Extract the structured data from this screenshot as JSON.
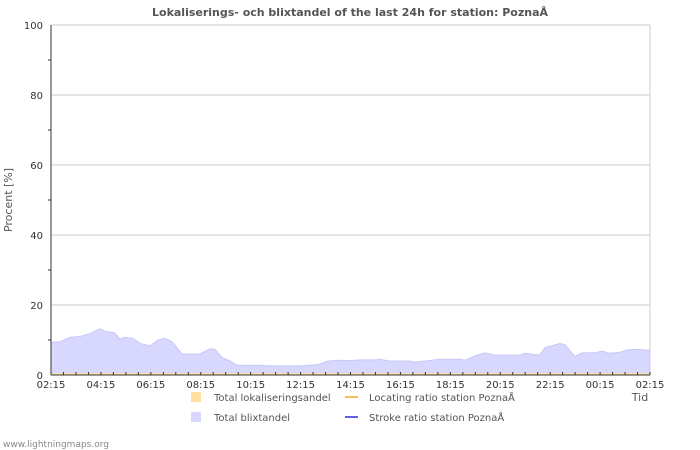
{
  "chart_data": {
    "type": "area",
    "title": "Lokaliserings- och blixtandel of the last 24h for station: PoznaÅ",
    "xlabel": "Tid",
    "ylabel": "Procent   [%]",
    "ylim": [
      0,
      100
    ],
    "yticks": [
      "0",
      "20",
      "40",
      "60",
      "80",
      "100"
    ],
    "xticks": [
      "02:15",
      "04:15",
      "06:15",
      "08:15",
      "10:15",
      "12:15",
      "14:15",
      "16:15",
      "18:15",
      "20:15",
      "22:15",
      "00:15",
      "02:15"
    ],
    "x_unit": "hours since 02:15",
    "series": [
      {
        "name": "Total blixtandel",
        "color": "#d8d8ff",
        "type": "area",
        "x": [
          0,
          0.36,
          0.76,
          1.16,
          1.56,
          1.96,
          2.16,
          2.56,
          2.76,
          2.96,
          3.29,
          3.57,
          3.97,
          4.29,
          4.57,
          4.85,
          5.25,
          5.97,
          6.37,
          6.57,
          6.85,
          7.17,
          7.45,
          8.37,
          8.77,
          9.98,
          10.38,
          10.7,
          11.1,
          11.58,
          11.98,
          12.38,
          12.98,
          13.18,
          13.58,
          14.38,
          14.58,
          15.58,
          16.39,
          16.59,
          16.99,
          17.39,
          17.79,
          18.79,
          18.99,
          19.39,
          19.59,
          19.79,
          20.39,
          20.59,
          20.99,
          21.27,
          21.79,
          22.08,
          22.4,
          22.8,
          23.12,
          23.6,
          23.84,
          24
        ],
        "values": [
          9.3,
          9.5,
          10.8,
          11,
          11.8,
          13.2,
          12.5,
          12,
          10.3,
          10.8,
          10.5,
          9,
          8.3,
          10,
          10.5,
          9.5,
          6,
          6,
          7.5,
          7.3,
          5,
          4,
          2.8,
          2.8,
          2.6,
          2.6,
          2.8,
          3,
          4,
          4.2,
          4.1,
          4.3,
          4.3,
          4.5,
          4,
          4,
          3.7,
          4.5,
          4.5,
          4.2,
          5.5,
          6.3,
          5.7,
          5.7,
          6.2,
          5.8,
          5.8,
          7.8,
          9,
          8.7,
          5.3,
          6.3,
          6.3,
          6.8,
          6.2,
          6.5,
          7.2,
          7.3,
          7.1,
          7.1
        ]
      },
      {
        "name": "Total lokaliseringsandel",
        "color": "#ffe0a0",
        "type": "area",
        "x": [
          0,
          24
        ],
        "values": [
          0.5,
          0.5
        ]
      },
      {
        "name": "Locating ratio station PoznaÅ",
        "color": "#f0c060",
        "type": "line",
        "x": [],
        "values": []
      },
      {
        "name": "Stroke ratio station PoznaÅ",
        "color": "#6060e0",
        "type": "line",
        "x": [],
        "values": []
      }
    ],
    "legend_placement": "bottom"
  },
  "footer": "www.lightningmaps.org"
}
